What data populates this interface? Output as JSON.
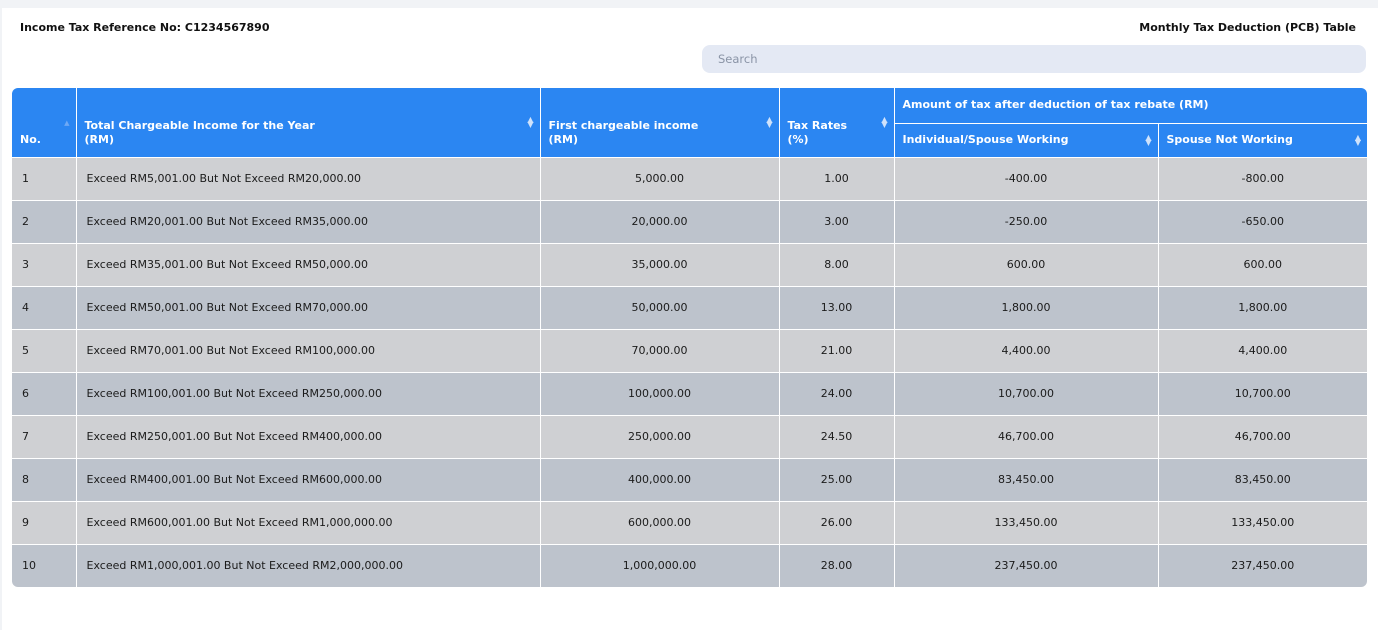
{
  "header": {
    "reference": "Income Tax Reference No: C1234567890",
    "table_title": "Monthly Tax Deduction (PCB) Table"
  },
  "search": {
    "placeholder": "Search"
  },
  "table": {
    "columns": {
      "no": "No.",
      "income_line1": "Total Chargeable Income for the Year",
      "income_line2": "(RM)",
      "first_line1": "First chargeable income",
      "first_line2": "(RM)",
      "rate_line1": "Tax Rates",
      "rate_line2": "(%)",
      "group": "Amount of tax after deduction of tax rebate (RM)",
      "individual": "Individual/Spouse Working",
      "spouse": "Spouse Not Working"
    },
    "rows": [
      {
        "no": "1",
        "income": "Exceed RM5,001.00 But Not Exceed RM20,000.00",
        "first": "5,000.00",
        "rate": "1.00",
        "individual": "-400.00",
        "spouse": "-800.00"
      },
      {
        "no": "2",
        "income": "Exceed RM20,001.00 But Not Exceed RM35,000.00",
        "first": "20,000.00",
        "rate": "3.00",
        "individual": "-250.00",
        "spouse": "-650.00"
      },
      {
        "no": "3",
        "income": "Exceed RM35,001.00 But Not Exceed RM50,000.00",
        "first": "35,000.00",
        "rate": "8.00",
        "individual": "600.00",
        "spouse": "600.00"
      },
      {
        "no": "4",
        "income": "Exceed RM50,001.00 But Not Exceed RM70,000.00",
        "first": "50,000.00",
        "rate": "13.00",
        "individual": "1,800.00",
        "spouse": "1,800.00"
      },
      {
        "no": "5",
        "income": "Exceed RM70,001.00 But Not Exceed RM100,000.00",
        "first": "70,000.00",
        "rate": "21.00",
        "individual": "4,400.00",
        "spouse": "4,400.00"
      },
      {
        "no": "6",
        "income": "Exceed RM100,001.00 But Not Exceed RM250,000.00",
        "first": "100,000.00",
        "rate": "24.00",
        "individual": "10,700.00",
        "spouse": "10,700.00"
      },
      {
        "no": "7",
        "income": "Exceed RM250,001.00 But Not Exceed RM400,000.00",
        "first": "250,000.00",
        "rate": "24.50",
        "individual": "46,700.00",
        "spouse": "46,700.00"
      },
      {
        "no": "8",
        "income": "Exceed RM400,001.00 But Not Exceed RM600,000.00",
        "first": "400,000.00",
        "rate": "25.00",
        "individual": "83,450.00",
        "spouse": "83,450.00"
      },
      {
        "no": "9",
        "income": "Exceed RM600,001.00 But Not Exceed RM1,000,000.00",
        "first": "600,000.00",
        "rate": "26.00",
        "individual": "133,450.00",
        "spouse": "133,450.00"
      },
      {
        "no": "10",
        "income": "Exceed RM1,000,001.00 But Not Exceed RM2,000,000.00",
        "first": "1,000,000.00",
        "rate": "28.00",
        "individual": "237,450.00",
        "spouse": "237,450.00"
      }
    ]
  },
  "colors": {
    "header_blue": "#2b86f2",
    "row_light": "#cfd0d3",
    "row_dark": "#bdc3cc",
    "search_bg": "#e4e9f4"
  },
  "icons": {
    "sort": "sort-arrows-icon",
    "sort_asc": "sort-ascending-icon"
  }
}
